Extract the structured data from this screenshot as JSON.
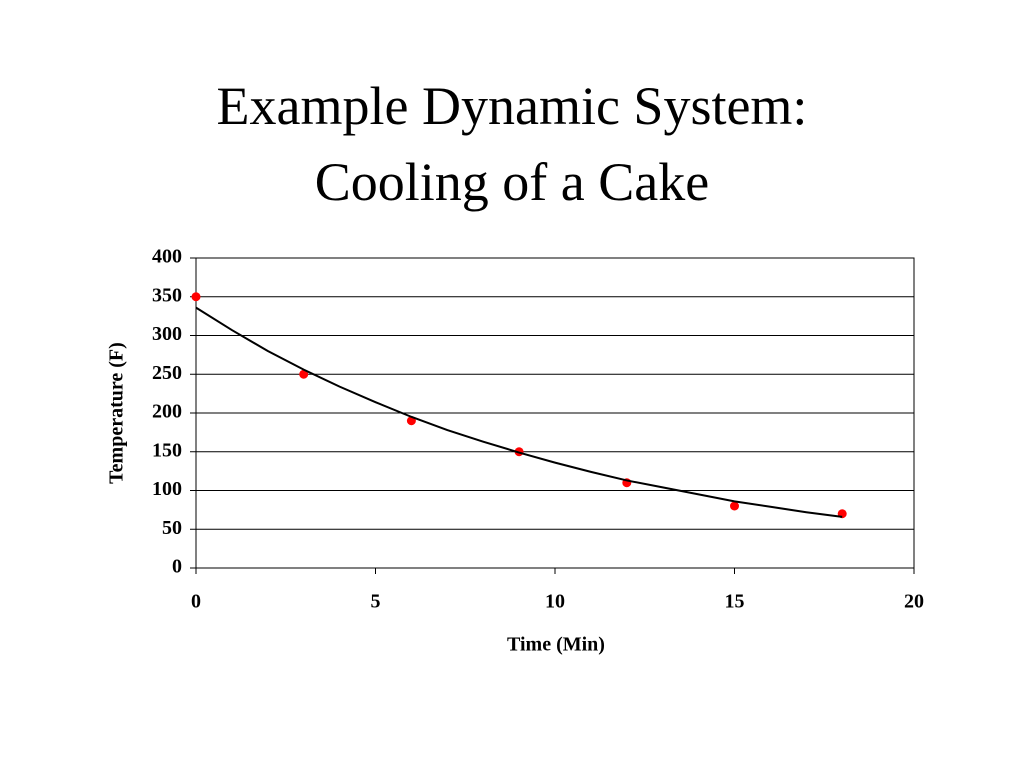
{
  "chart_data": {
    "type": "scatter",
    "title": "Example Dynamic System: Cooling of a Cake",
    "x_label": "Time (Min)",
    "y_label": "Temperature (F)",
    "xlim": [
      0,
      20
    ],
    "xticks": [
      0,
      5,
      10,
      15,
      20
    ],
    "ylim": [
      0,
      400
    ],
    "yticks": [
      0,
      50,
      100,
      150,
      200,
      250,
      300,
      350,
      400
    ],
    "grid": true,
    "series": [
      {
        "color": "#ff0000",
        "mode": "markers",
        "x": [
          0,
          3,
          6,
          9,
          12,
          15,
          18
        ],
        "values": [
          350,
          250,
          190,
          150,
          110,
          80,
          70
        ]
      },
      {
        "color": "#000000",
        "mode": "lines",
        "x": [
          0,
          1,
          2,
          3,
          4,
          5,
          6,
          7,
          8,
          9,
          10,
          11,
          12,
          13,
          14,
          15,
          16,
          17,
          18
        ],
        "values": [
          336,
          307,
          280,
          256,
          234,
          214,
          195,
          178,
          163,
          149,
          136,
          124,
          113,
          104,
          95,
          86,
          79,
          72,
          66
        ]
      }
    ]
  }
}
